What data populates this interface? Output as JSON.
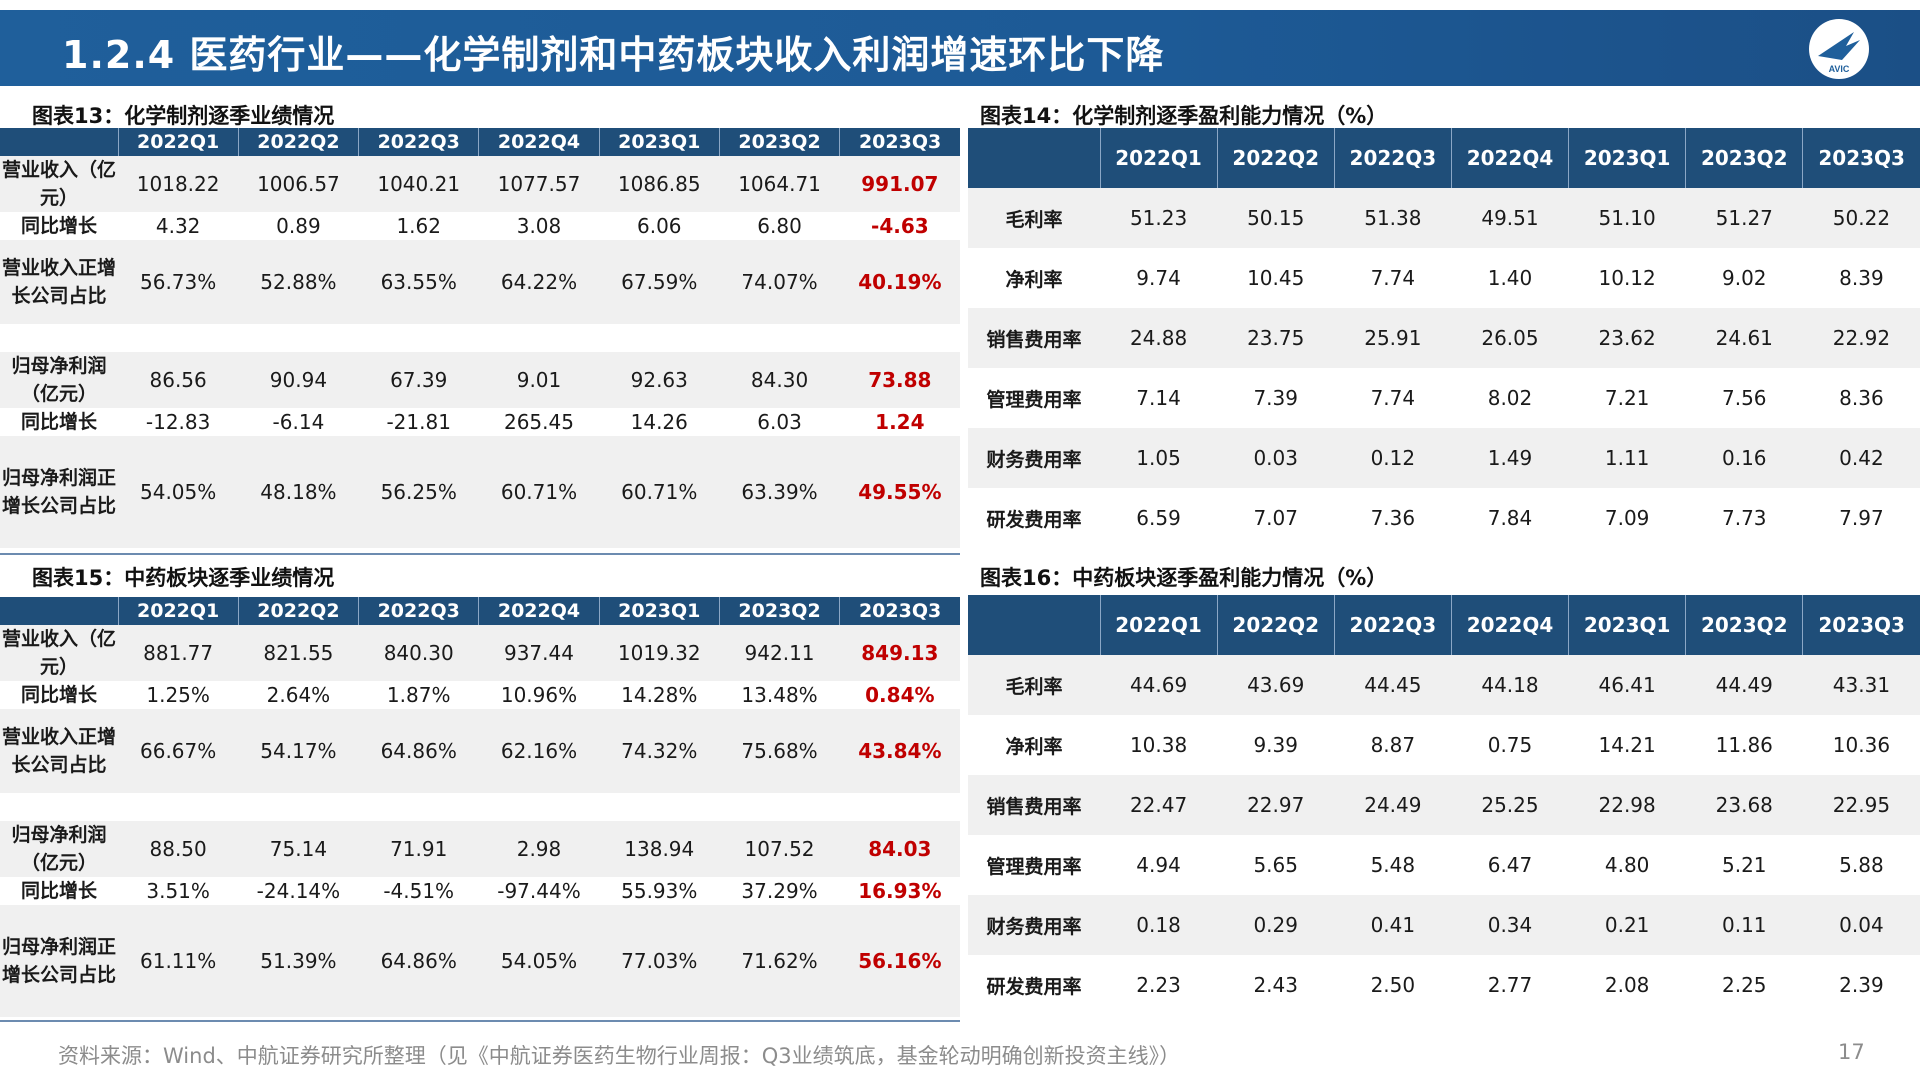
{
  "header": {
    "title": "1.2.4 医药行业——化学制剂和中药板块收入利润增速环比下降",
    "logo_text": "AVIC"
  },
  "quarters": [
    "2022Q1",
    "2022Q2",
    "2022Q3",
    "2022Q4",
    "2023Q1",
    "2023Q2",
    "2023Q3"
  ],
  "table13": {
    "caption": "图表13：化学制剂逐季业绩情况",
    "rows": [
      {
        "label": "营业收入（亿元）",
        "values": [
          "1018.22",
          "1006.57",
          "1040.21",
          "1077.57",
          "1086.85",
          "1064.71",
          "991.07"
        ]
      },
      {
        "label": "同比增长",
        "values": [
          "4.32",
          "0.89",
          "1.62",
          "3.08",
          "6.06",
          "6.80",
          "-4.63"
        ]
      },
      {
        "label": "营业收入正增长公司占比",
        "values": [
          "56.73%",
          "52.88%",
          "63.55%",
          "64.22%",
          "67.59%",
          "74.07%",
          "40.19%"
        ]
      },
      {
        "label": "归母净利润（亿元）",
        "values": [
          "86.56",
          "90.94",
          "67.39",
          "9.01",
          "92.63",
          "84.30",
          "73.88"
        ]
      },
      {
        "label": "同比增长",
        "values": [
          "-12.83",
          "-6.14",
          "-21.81",
          "265.45",
          "14.26",
          "6.03",
          "1.24"
        ]
      },
      {
        "label": "归母净利润正增长公司占比",
        "values": [
          "54.05%",
          "48.18%",
          "56.25%",
          "60.71%",
          "60.71%",
          "63.39%",
          "49.55%"
        ]
      }
    ]
  },
  "table14": {
    "caption": "图表14：化学制剂逐季盈利能力情况（%）",
    "rows": [
      {
        "label": "毛利率",
        "values": [
          "51.23",
          "50.15",
          "51.38",
          "49.51",
          "51.10",
          "51.27",
          "50.22"
        ]
      },
      {
        "label": "净利率",
        "values": [
          "9.74",
          "10.45",
          "7.74",
          "1.40",
          "10.12",
          "9.02",
          "8.39"
        ]
      },
      {
        "label": "销售费用率",
        "values": [
          "24.88",
          "23.75",
          "25.91",
          "26.05",
          "23.62",
          "24.61",
          "22.92"
        ]
      },
      {
        "label": "管理费用率",
        "values": [
          "7.14",
          "7.39",
          "7.74",
          "8.02",
          "7.21",
          "7.56",
          "8.36"
        ]
      },
      {
        "label": "财务费用率",
        "values": [
          "1.05",
          "0.03",
          "0.12",
          "1.49",
          "1.11",
          "0.16",
          "0.42"
        ]
      },
      {
        "label": "研发费用率",
        "values": [
          "6.59",
          "7.07",
          "7.36",
          "7.84",
          "7.09",
          "7.73",
          "7.97"
        ]
      }
    ]
  },
  "table15": {
    "caption": "图表15：中药板块逐季业绩情况",
    "rows": [
      {
        "label": "营业收入（亿元）",
        "values": [
          "881.77",
          "821.55",
          "840.30",
          "937.44",
          "1019.32",
          "942.11",
          "849.13"
        ]
      },
      {
        "label": "同比增长",
        "values": [
          "1.25%",
          "2.64%",
          "1.87%",
          "10.96%",
          "14.28%",
          "13.48%",
          "0.84%"
        ]
      },
      {
        "label": "营业收入正增长公司占比",
        "values": [
          "66.67%",
          "54.17%",
          "64.86%",
          "62.16%",
          "74.32%",
          "75.68%",
          "43.84%"
        ]
      },
      {
        "label": "归母净利润（亿元）",
        "values": [
          "88.50",
          "75.14",
          "71.91",
          "2.98",
          "138.94",
          "107.52",
          "84.03"
        ]
      },
      {
        "label": "同比增长",
        "values": [
          "3.51%",
          "-24.14%",
          "-4.51%",
          "-97.44%",
          "55.93%",
          "37.29%",
          "16.93%"
        ]
      },
      {
        "label": "归母净利润正增长公司占比",
        "values": [
          "61.11%",
          "51.39%",
          "64.86%",
          "54.05%",
          "77.03%",
          "71.62%",
          "56.16%"
        ]
      }
    ]
  },
  "table16": {
    "caption": "图表16：中药板块逐季盈利能力情况（%）",
    "rows": [
      {
        "label": "毛利率",
        "values": [
          "44.69",
          "43.69",
          "44.45",
          "44.18",
          "46.41",
          "44.49",
          "43.31"
        ]
      },
      {
        "label": "净利率",
        "values": [
          "10.38",
          "9.39",
          "8.87",
          "0.75",
          "14.21",
          "11.86",
          "10.36"
        ]
      },
      {
        "label": "销售费用率",
        "values": [
          "22.47",
          "22.97",
          "24.49",
          "25.25",
          "22.98",
          "23.68",
          "22.95"
        ]
      },
      {
        "label": "管理费用率",
        "values": [
          "4.94",
          "5.65",
          "5.48",
          "6.47",
          "4.80",
          "5.21",
          "5.88"
        ]
      },
      {
        "label": "财务费用率",
        "values": [
          "0.18",
          "0.29",
          "0.41",
          "0.34",
          "0.21",
          "0.11",
          "0.04"
        ]
      },
      {
        "label": "研发费用率",
        "values": [
          "2.23",
          "2.43",
          "2.50",
          "2.77",
          "2.08",
          "2.25",
          "2.39"
        ]
      }
    ]
  },
  "footer": {
    "source": "资料来源：Wind、中航证券研究所整理（见《中航证券医药生物行业周报：Q3业绩筑底，基金轮动明确创新投资主线》）",
    "page": "17"
  },
  "colors": {
    "header_bg": "#1f5f9b",
    "table_header_bg": "#1f4e79",
    "highlight": "#c00000",
    "row_gray": "#f0f0f0"
  }
}
